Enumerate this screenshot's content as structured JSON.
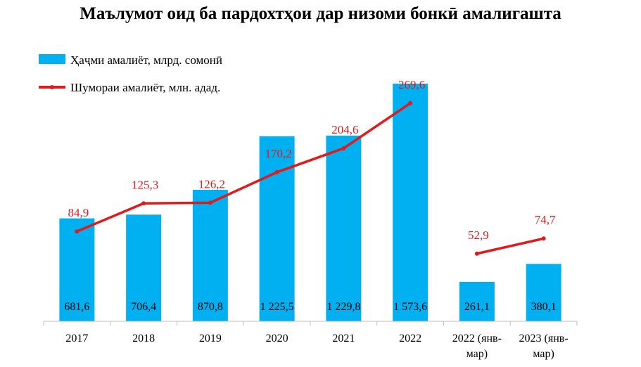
{
  "title": "Маълумот оид ба пардохтҳои дар низоми бонкӣ амалигашта",
  "colors": {
    "bar": "#00b0f0",
    "line": "#e31a1c",
    "axis": "#bfbfbf"
  },
  "chart_data": {
    "type": "bar",
    "categories": [
      "2017",
      "2018",
      "2019",
      "2020",
      "2021",
      "2022",
      "2022 (янв-мар)",
      "2023 (янв-мар)"
    ],
    "category_lines": [
      [
        "2017"
      ],
      [
        "2018"
      ],
      [
        "2019"
      ],
      [
        "2020"
      ],
      [
        "2021"
      ],
      [
        "2022"
      ],
      [
        "2022 (янв-",
        "мар)"
      ],
      [
        "2023 (янв-",
        "мар)"
      ]
    ],
    "series": [
      {
        "name": "Ҳаҷми амалиёт, млрд. сомонӣ",
        "type": "bar",
        "values": [
          681.6,
          706.4,
          870.8,
          1225.5,
          1229.8,
          1573.6,
          261.1,
          380.1
        ],
        "labels": [
          "681,6",
          "706,4",
          "870,8",
          "1 225,5",
          "1 229,8",
          "1 573,6",
          "261,1",
          "380,1"
        ]
      },
      {
        "name": "Шумораи амалиёт, млн. адад.",
        "type": "line",
        "values": [
          84.9,
          125.3,
          126.2,
          170.2,
          204.6,
          269.6,
          52.9,
          74.7
        ],
        "labels": [
          "84,9",
          "125,3",
          "126,2",
          "170,2",
          "204,6",
          "269,6",
          "52,9",
          "74,7"
        ],
        "segments": [
          [
            0,
            5
          ],
          [
            6,
            7
          ]
        ]
      }
    ],
    "legend": "top-left",
    "grid": false
  }
}
